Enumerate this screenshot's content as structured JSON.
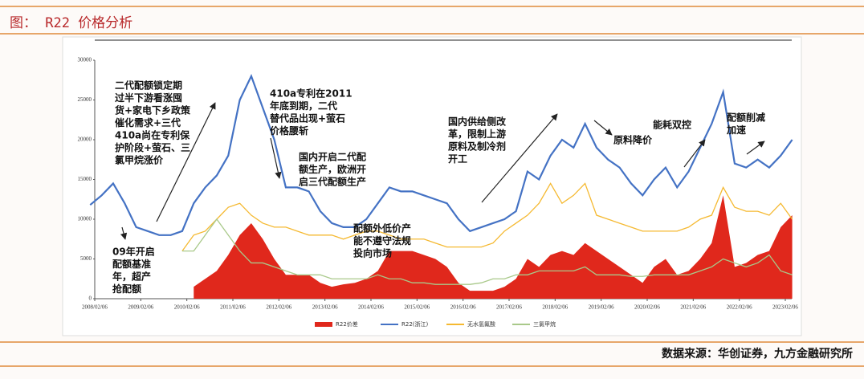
{
  "header": {
    "title": "图： R22 价格分析"
  },
  "source": "数据来源：华创证券，九方金融研究所",
  "chart_data": {
    "type": "line",
    "x": [
      2008,
      2008.25,
      2008.5,
      2008.75,
      2009,
      2009.25,
      2009.5,
      2009.75,
      2010,
      2010.25,
      2010.5,
      2010.75,
      2011,
      2011.25,
      2011.5,
      2011.75,
      2012,
      2012.25,
      2012.5,
      2012.75,
      2013,
      2013.25,
      2013.5,
      2013.75,
      2014,
      2014.25,
      2014.5,
      2014.75,
      2015,
      2015.25,
      2015.5,
      2015.75,
      2016,
      2016.25,
      2016.5,
      2016.75,
      2017,
      2017.25,
      2017.5,
      2017.75,
      2018,
      2018.25,
      2018.5,
      2018.75,
      2019,
      2019.25,
      2019.5,
      2019.75,
      2020,
      2020.25,
      2020.5,
      2020.75,
      2021,
      2021.25,
      2021.5,
      2021.75,
      2022,
      2022.25,
      2022.5,
      2022.75,
      2023,
      2023.25
    ],
    "xlim": [
      2008.1,
      2023.1
    ],
    "xticks": [
      {
        "value": 2008.1,
        "label": "2008/02/06"
      },
      {
        "value": 2009.1,
        "label": "2009/02/06"
      },
      {
        "value": 2010.1,
        "label": "2010/02/06"
      },
      {
        "value": 2011.1,
        "label": "2011/02/06"
      },
      {
        "value": 2012.1,
        "label": "2012/02/06"
      },
      {
        "value": 2013.1,
        "label": "2013/02/06"
      },
      {
        "value": 2014.1,
        "label": "2014/02/06"
      },
      {
        "value": 2015.1,
        "label": "2015/02/06"
      },
      {
        "value": 2016.1,
        "label": "2016/02/06"
      },
      {
        "value": 2017.1,
        "label": "2017/02/06"
      },
      {
        "value": 2018.1,
        "label": "2018/02/06"
      },
      {
        "value": 2019.1,
        "label": "2019/02/06"
      },
      {
        "value": 2020.1,
        "label": "2020/02/06"
      },
      {
        "value": 2021.1,
        "label": "2021/02/06"
      },
      {
        "value": 2022.1,
        "label": "2022/02/06"
      },
      {
        "value": 2023.1,
        "label": "2023/02/06"
      }
    ],
    "ylim": [
      0,
      30000
    ],
    "yticks": [
      0,
      5000,
      10000,
      15000,
      20000,
      25000,
      30000
    ],
    "series": [
      {
        "name": "R22价差",
        "type": "area",
        "color": "#e0281c",
        "values": [
          null,
          null,
          null,
          null,
          null,
          null,
          null,
          null,
          null,
          1500,
          2500,
          3500,
          5500,
          8000,
          9500,
          7500,
          5000,
          3000,
          3000,
          3000,
          2000,
          1500,
          1800,
          2000,
          2500,
          3500,
          6000,
          6000,
          6000,
          5500,
          5000,
          4000,
          2000,
          1000,
          1000,
          1000,
          1500,
          2500,
          5000,
          4000,
          5500,
          6000,
          5500,
          7000,
          6000,
          5000,
          4000,
          3000,
          2000,
          4000,
          5000,
          3000,
          3500,
          5000,
          7000,
          13000,
          4000,
          4500,
          5500,
          6000,
          9000,
          10500
        ]
      },
      {
        "name": "R22(浙江)",
        "type": "line",
        "color": "#4472c4",
        "values": [
          11800,
          13000,
          14500,
          12000,
          9000,
          8500,
          8000,
          8000,
          8500,
          12000,
          14000,
          15500,
          18000,
          25000,
          28000,
          24000,
          20000,
          14000,
          14000,
          13500,
          11000,
          9500,
          9000,
          9000,
          10000,
          12000,
          14000,
          13500,
          13500,
          13000,
          12500,
          12000,
          10000,
          8500,
          9000,
          9500,
          10000,
          11000,
          16000,
          15000,
          18000,
          20000,
          19000,
          22000,
          19000,
          17500,
          16500,
          14500,
          13000,
          15000,
          16500,
          14000,
          16000,
          19000,
          22000,
          26000,
          17000,
          16500,
          17500,
          16500,
          18000,
          20000
        ]
      },
      {
        "name": "无水氢氟酸",
        "type": "line",
        "color": "#f5b931",
        "values": [
          null,
          null,
          null,
          null,
          null,
          null,
          null,
          null,
          6000,
          8000,
          8500,
          10000,
          11500,
          12000,
          10500,
          9500,
          9000,
          9000,
          8500,
          8000,
          8000,
          8000,
          7500,
          8000,
          8500,
          8500,
          8000,
          7500,
          7500,
          7500,
          7000,
          6500,
          6500,
          6500,
          6500,
          7000,
          8500,
          9500,
          10500,
          12000,
          14500,
          12000,
          13000,
          14500,
          10500,
          10000,
          9500,
          9000,
          8500,
          8500,
          8500,
          8500,
          9000,
          10000,
          10500,
          14000,
          11500,
          11000,
          11000,
          10500,
          12000,
          10000
        ]
      },
      {
        "name": "三氯甲烷",
        "type": "line",
        "color": "#a9c98a",
        "values": [
          null,
          null,
          null,
          null,
          null,
          null,
          null,
          null,
          6000,
          6000,
          8000,
          10000,
          8000,
          6000,
          4500,
          4500,
          4000,
          3500,
          3000,
          3000,
          3000,
          2500,
          2500,
          2500,
          2500,
          3000,
          2500,
          2500,
          2000,
          2000,
          1800,
          1800,
          1800,
          1800,
          2000,
          2500,
          2500,
          3000,
          3000,
          3500,
          3500,
          3500,
          3500,
          4000,
          3000,
          3000,
          3000,
          2800,
          2800,
          3000,
          3000,
          3000,
          3000,
          3500,
          4000,
          5000,
          4500,
          4000,
          4500,
          5500,
          3500,
          3000
        ]
      }
    ],
    "annotations": [
      [
        "09年开启",
        "配额基准",
        "年，超产",
        "抢配额"
      ],
      [
        "二代配额锁定期",
        "过半下游看涨囤",
        "货+家电下乡政策",
        "催化需求+三代",
        "410a尚在专利保",
        "护阶段+萤石、三",
        "氯甲烷涨价"
      ],
      [
        "410a专利在2011",
        "年底到期，二代",
        "替代品出现+萤石",
        "价格腰斩"
      ],
      [
        "国内开启二代配",
        "额生产，欧洲开",
        "启三代配额生产"
      ],
      [
        "配额外低价产",
        "能不遵守法规",
        "投向市场"
      ],
      [
        "国内供给侧改",
        "革，限制上游",
        "原料及制冷剂",
        "开工"
      ],
      [
        "原料降价"
      ],
      [
        "能耗双控"
      ],
      [
        "配额削减",
        "加速"
      ]
    ]
  }
}
